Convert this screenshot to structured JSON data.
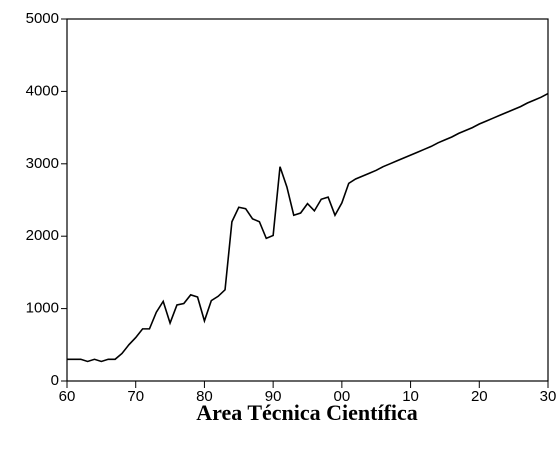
{
  "chart_data": {
    "type": "line",
    "title": "Area Técnica Científica",
    "x": [
      1960,
      1961,
      1962,
      1963,
      1964,
      1965,
      1966,
      1967,
      1968,
      1969,
      1970,
      1971,
      1972,
      1973,
      1974,
      1975,
      1976,
      1977,
      1978,
      1979,
      1980,
      1981,
      1982,
      1983,
      1984,
      1985,
      1986,
      1987,
      1988,
      1989,
      1990,
      1991,
      1992,
      1993,
      1994,
      1995,
      1996,
      1997,
      1998,
      1999,
      2000,
      2001,
      2002,
      2003,
      2004,
      2005,
      2006,
      2007,
      2008,
      2009,
      2010,
      2011,
      2012,
      2013,
      2014,
      2015,
      2016,
      2017,
      2018,
      2019,
      2020,
      2021,
      2022,
      2023,
      2024,
      2025,
      2026,
      2027,
      2028,
      2029,
      2030
    ],
    "values": [
      300,
      300,
      300,
      270,
      300,
      270,
      300,
      300,
      380,
      500,
      600,
      720,
      720,
      950,
      1100,
      800,
      1050,
      1070,
      1190,
      1160,
      830,
      1110,
      1170,
      1260,
      2200,
      2400,
      2380,
      2240,
      2200,
      1970,
      2010,
      2960,
      2680,
      2290,
      2320,
      2450,
      2350,
      2510,
      2540,
      2290,
      2460,
      2730,
      2790,
      2830,
      2870,
      2910,
      2960,
      3000,
      3040,
      3080,
      3120,
      3160,
      3200,
      3240,
      3290,
      3330,
      3370,
      3420,
      3460,
      3500,
      3550,
      3590,
      3630,
      3670,
      3710,
      3750,
      3790,
      3840,
      3880,
      3920,
      3970
    ],
    "color": "#000000",
    "xlim": [
      1960,
      2030
    ],
    "xticks": [
      {
        "value": 1960,
        "label": "60"
      },
      {
        "value": 1970,
        "label": "70"
      },
      {
        "value": 1980,
        "label": "80"
      },
      {
        "value": 1990,
        "label": "90"
      },
      {
        "value": 2000,
        "label": "00"
      },
      {
        "value": 2010,
        "label": "10"
      },
      {
        "value": 2020,
        "label": "20"
      },
      {
        "value": 2030,
        "label": "30"
      }
    ],
    "ylim": [
      0,
      5000
    ],
    "yticks": [
      0,
      1000,
      2000,
      3000,
      4000,
      5000
    ],
    "grid": false
  }
}
